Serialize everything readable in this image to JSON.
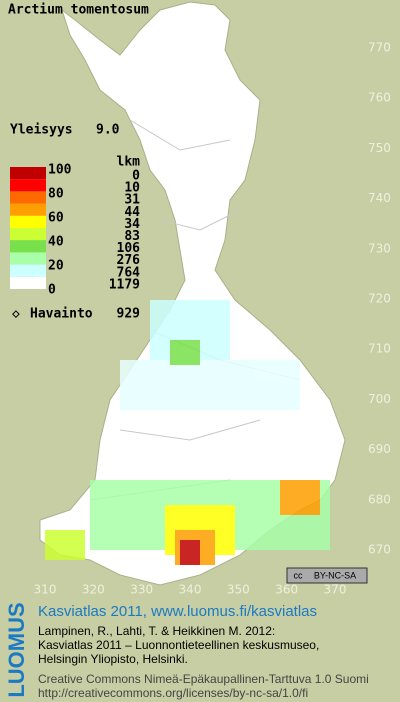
{
  "map": {
    "title": "Arctium tomentosum",
    "frequency_label": "Yleisyys",
    "frequency_value": "9.0",
    "y_labels": [
      770,
      760,
      750,
      740,
      730,
      720,
      710,
      700,
      690,
      680,
      670
    ],
    "x_labels": [
      310,
      320,
      330,
      340,
      350,
      360,
      370
    ],
    "legend": {
      "count_header": "lkm",
      "scale_labels": [
        100,
        80,
        60,
        40,
        20,
        0
      ],
      "colors": [
        "#c00000",
        "#ff0000",
        "#ff6a00",
        "#ff9e00",
        "#ffff00",
        "#ccff33",
        "#77e04a",
        "#a8ffa8",
        "#ccffff",
        "#ffffff"
      ],
      "counts": [
        0,
        10,
        31,
        44,
        34,
        83,
        106,
        276,
        764,
        1179
      ]
    },
    "observation_label": "Havainto",
    "observation_count": 929,
    "license_badge": "BY-NC-SA"
  },
  "footer": {
    "logo": "LUOMUS",
    "heading": "Kasviatlas 2011, www.luomus.fi/kasviatlas",
    "citation": [
      "Lampinen, R., Lahti, T. & Heikkinen M. 2012:",
      "Kasviatlas 2011 – Luonnontieteellinen keskusmuseo,",
      "Helsingin Yliopisto, Helsinki."
    ],
    "license": [
      "Creative Commons Nimeä-Epäkaupallinen-Tarttuva 1.0 Suomi",
      "http://creativecommons.org/licenses/by-nc-sa/1.0/fi"
    ]
  }
}
